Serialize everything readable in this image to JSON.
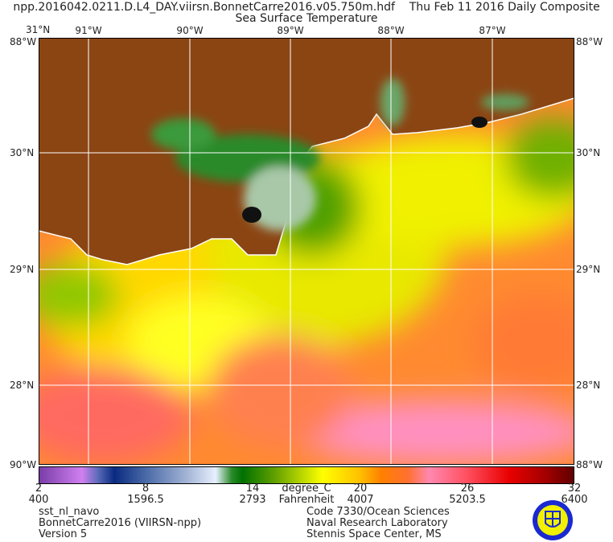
{
  "header": {
    "filename": "npp.2016042.0211.D.L4_DAY.viirsn.BonnetCarre2016.v05.750m.hdf",
    "composite": "Thu Feb 11 2016 Daily Composite",
    "title": "Sea Surface Temperature"
  },
  "map": {
    "lon_labels": [
      "91°W",
      "90°W",
      "89°W",
      "88°W",
      "87°W"
    ],
    "lat_labels": [
      "30°N",
      "29°N",
      "28°N"
    ],
    "corner_labels": {
      "top_left_lat": "31°N",
      "top_left_lon": "88°W",
      "top_right_lon": "88°W",
      "bottom_left": "90°W",
      "bottom_right": "88°W"
    },
    "colors": {
      "land": "#8b4513",
      "grid": "#ffffff",
      "coast": "#ffffff"
    }
  },
  "colorbar": {
    "celsius_ticks": [
      "2",
      "8",
      "14",
      "20",
      "26",
      "32"
    ],
    "fahrenheit_ticks": [
      "400",
      "1596.5",
      "2793",
      "4007",
      "5203.5",
      "6400"
    ],
    "unit_c": "degree_C",
    "unit_f": "Fahrenheit"
  },
  "footer": {
    "left": [
      "sst_nl_navo",
      "BonnetCarre2016 (VIIRSN-npp)",
      "Version 5"
    ],
    "right": [
      "Code 7330/Ocean Sciences",
      "Naval Research Laboratory",
      "Stennis Space Center, MS"
    ]
  }
}
